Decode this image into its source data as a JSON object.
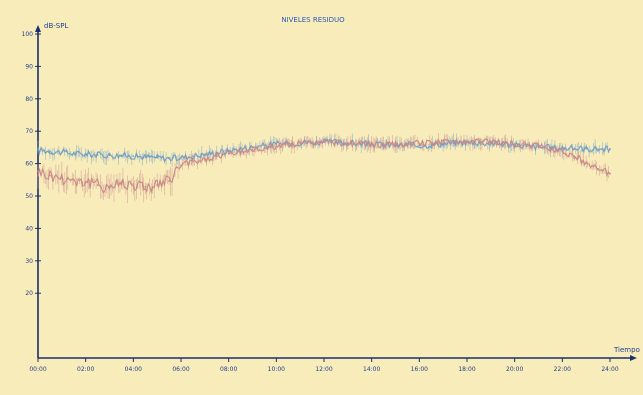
{
  "chart_data": {
    "type": "line",
    "title": "NIVELES RESIDUO",
    "ylabel": "dB-SPL",
    "xlabel": "Tiempo",
    "ylim": [
      0,
      100
    ],
    "y_ticks": [
      "20",
      "30",
      "40",
      "50",
      "60",
      "70",
      "80",
      "90",
      "100"
    ],
    "y_tick_values": [
      20,
      30,
      40,
      50,
      60,
      70,
      80,
      90,
      100
    ],
    "x_ticks": [
      "00:00",
      "02:00",
      "04:00",
      "06:00",
      "08:00",
      "10:00",
      "12:00",
      "14:00",
      "16:00",
      "18:00",
      "20:00",
      "22:00",
      "24:00"
    ],
    "x": [
      "00:00",
      "00:30",
      "01:00",
      "01:30",
      "02:00",
      "02:30",
      "03:00",
      "03:30",
      "04:00",
      "04:30",
      "05:00",
      "05:30",
      "06:00",
      "06:30",
      "07:00",
      "07:30",
      "08:00",
      "08:30",
      "09:00",
      "09:30",
      "10:00",
      "10:30",
      "11:00",
      "11:30",
      "12:00",
      "12:30",
      "13:00",
      "13:30",
      "14:00",
      "14:30",
      "15:00",
      "15:30",
      "16:00",
      "16:30",
      "17:00",
      "17:30",
      "18:00",
      "18:30",
      "19:00",
      "19:30",
      "20:00",
      "20:30",
      "21:00",
      "21:30",
      "22:00",
      "22:30",
      "23:00",
      "23:30",
      "24:00"
    ],
    "series": [
      {
        "color": "#6f9fc9",
        "values": [
          64.2,
          63.8,
          63.5,
          63.1,
          62.9,
          62.7,
          62.6,
          62.5,
          62.3,
          62.1,
          61.9,
          61.6,
          61.8,
          62.3,
          62.8,
          63.4,
          64.0,
          64.6,
          65.1,
          65.6,
          66.0,
          66.3,
          66.5,
          66.6,
          66.7,
          66.6,
          66.4,
          66.2,
          66.0,
          65.8,
          65.7,
          65.6,
          65.6,
          65.8,
          66.1,
          66.4,
          66.6,
          66.5,
          66.3,
          66.0,
          65.7,
          65.4,
          65.1,
          64.9,
          64.8,
          64.7,
          64.6,
          64.5,
          64.5
        ]
      },
      {
        "color": "#c98a8a",
        "values": [
          57.6,
          56.3,
          55.6,
          55.1,
          54.3,
          53.4,
          52.9,
          54.2,
          53.7,
          52.8,
          53.4,
          54.6,
          59.5,
          60.6,
          61.2,
          62.2,
          63.0,
          63.6,
          64.2,
          64.8,
          65.4,
          65.9,
          66.2,
          66.4,
          66.6,
          66.5,
          66.3,
          66.1,
          65.9,
          65.8,
          65.8,
          66.0,
          66.2,
          66.4,
          66.7,
          66.9,
          67.0,
          66.9,
          66.7,
          66.4,
          66.0,
          65.7,
          65.3,
          64.6,
          63.9,
          62.3,
          60.4,
          58.4,
          56.9
        ]
      }
    ]
  }
}
